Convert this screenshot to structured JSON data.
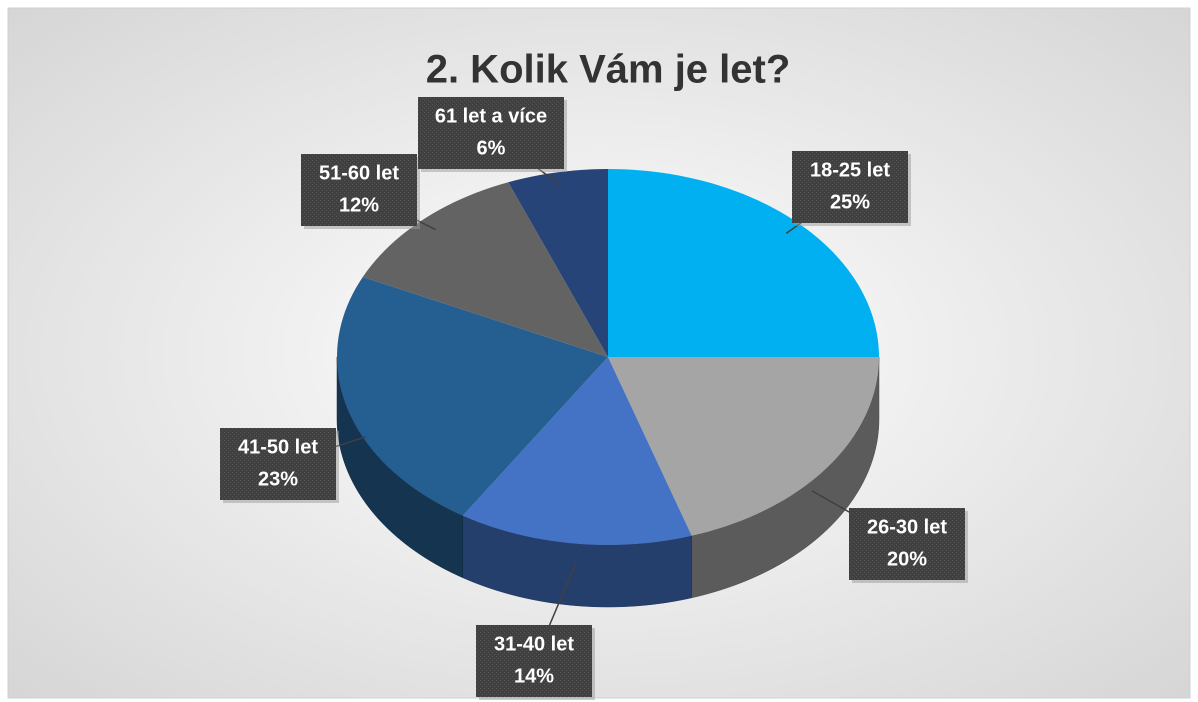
{
  "chart_data": {
    "type": "pie",
    "title": "2. Kolik Vám je let?",
    "categories": [
      "18-25 let",
      "26-30 let",
      "31-40 let",
      "41-50 let",
      "51-60 let",
      "61 let a více"
    ],
    "values": [
      25,
      20,
      14,
      23,
      12,
      6
    ],
    "value_labels": [
      "25%",
      "20%",
      "14%",
      "23%",
      "12%",
      "6%"
    ],
    "colors": [
      "#00b0f0",
      "#a5a5a5",
      "#4472c4",
      "#255e91",
      "#636363",
      "#264478"
    ]
  }
}
